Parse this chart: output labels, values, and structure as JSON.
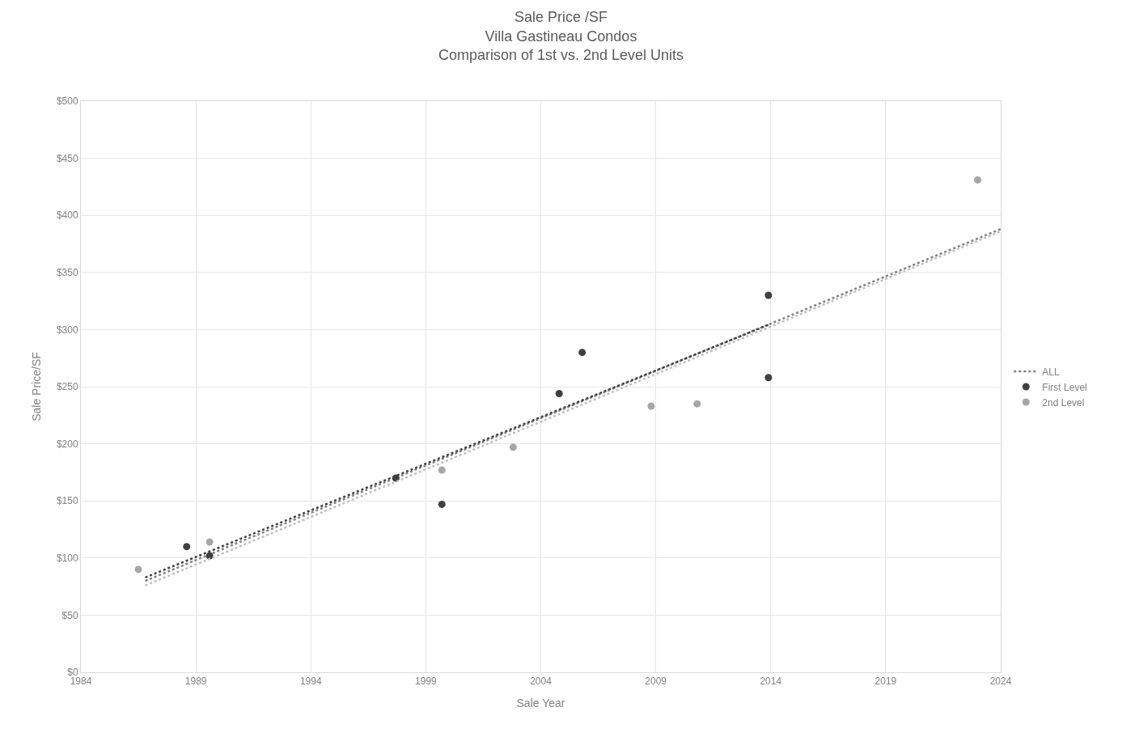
{
  "chart_data": {
    "type": "scatter",
    "title": "Sale Price /SF",
    "subtitle": "Villa Gastineau Condos\nComparison of 1st vs. 2nd Level Units",
    "xlabel": "Sale Year",
    "ylabel": "Sale Price/SF",
    "xlim": [
      1984,
      2024
    ],
    "xticks": [
      1984,
      1989,
      1994,
      1999,
      2004,
      2009,
      2014,
      2019,
      2024
    ],
    "ylim": [
      0,
      500
    ],
    "yticks": [
      {
        "value": 0,
        "label": "$0"
      },
      {
        "value": 50,
        "label": "$50"
      },
      {
        "value": 100,
        "label": "$100"
      },
      {
        "value": 150,
        "label": "$150"
      },
      {
        "value": 200,
        "label": "$200"
      },
      {
        "value": 250,
        "label": "$250"
      },
      {
        "value": 300,
        "label": "$300"
      },
      {
        "value": 350,
        "label": "$350"
      },
      {
        "value": 400,
        "label": "$400"
      },
      {
        "value": 450,
        "label": "$450"
      },
      {
        "value": 500,
        "label": "$500"
      }
    ],
    "grid": true,
    "legend": "right",
    "series": [
      {
        "name": "ALL",
        "type": "line",
        "marker": "none",
        "line_style": "dotted",
        "color": "#7f7f7f",
        "x": [
          1986.8,
          2024
        ],
        "values": [
          80,
          388
        ]
      },
      {
        "name": "First Level",
        "marker": "circle",
        "color": "#404040",
        "x": [
          1988.6,
          1989.6,
          1997.7,
          1999.7,
          2004.8,
          2005.8,
          2013.9,
          2013.9
        ],
        "values": [
          110,
          102,
          170,
          147,
          244,
          280,
          330,
          258
        ]
      },
      {
        "name": "2nd Level",
        "marker": "circle",
        "color": "#a6a6a6",
        "x": [
          1986.5,
          1989.6,
          1999.7,
          2002.8,
          2008.8,
          2010.8,
          2023.0
        ],
        "values": [
          90,
          114,
          177,
          197,
          233,
          235,
          431
        ]
      },
      {
        "type": "line",
        "marker": "none",
        "line_style": "dotted",
        "color": "#404040",
        "x": [
          1986.8,
          2014
        ],
        "values": [
          83,
          305
        ]
      },
      {
        "type": "line",
        "marker": "none",
        "line_style": "dotted",
        "color": "#bfbfbf",
        "x": [
          1986.8,
          2024
        ],
        "values": [
          76,
          386
        ]
      }
    ]
  }
}
